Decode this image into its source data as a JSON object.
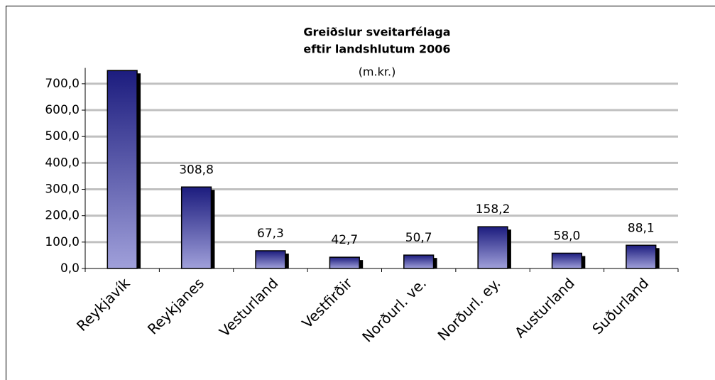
{
  "chart_data": {
    "type": "bar",
    "title": [
      "Greiðslur sveitarfélaga",
      "eftir landshlutum 2006"
    ],
    "subtitle": "(m.kr.)",
    "categories": [
      "Reykjavík",
      "Reykjanes",
      "Vesturland",
      "Vestfirðir",
      "Norðurl. ve.",
      "Norðurl. ey.",
      "Austurland",
      "Suðurland"
    ],
    "values": [
      750,
      308.8,
      67.3,
      42.7,
      50.7,
      158.2,
      58.0,
      88.1
    ],
    "value_labels": [
      null,
      "308,8",
      "67,3",
      "42,7",
      "50,7",
      "158,2",
      "58,0",
      "88,1"
    ],
    "colors": [
      "#1c1c7e",
      "#a0a0da"
    ],
    "ylim": [
      0,
      760
    ],
    "yticks": [
      {
        "value": 0,
        "label": "0,0"
      },
      {
        "value": 100,
        "label": "100,0"
      },
      {
        "value": 200,
        "label": "200,0"
      },
      {
        "value": 300,
        "label": "300,0"
      },
      {
        "value": 400,
        "label": "400,0"
      },
      {
        "value": 500,
        "label": "500,0"
      },
      {
        "value": 600,
        "label": "600,0"
      },
      {
        "value": 700,
        "label": "700,0"
      }
    ],
    "grid": true
  }
}
